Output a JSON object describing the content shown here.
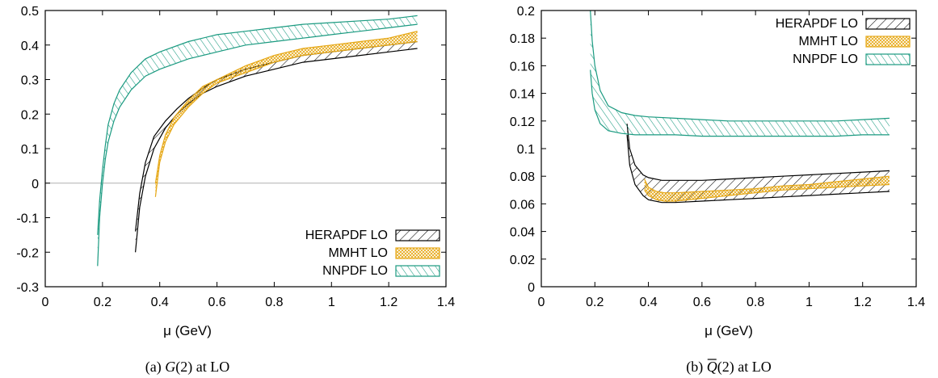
{
  "chart_data": [
    {
      "type": "area",
      "caption_prefix": "(a) ",
      "caption_symbol": "G",
      "caption_suffix": "(2) at LO",
      "xlabel": "μ (GeV)",
      "ylabel": "",
      "xlim": [
        0,
        1.4
      ],
      "ylim": [
        -0.3,
        0.5
      ],
      "xticks": [
        0,
        0.2,
        0.4,
        0.6,
        0.8,
        1,
        1.2,
        1.4
      ],
      "xtick_labels": [
        "0",
        "0.2",
        "0.4",
        "0.6",
        "0.8",
        "1",
        "1.2",
        "1.4"
      ],
      "yticks": [
        -0.3,
        -0.2,
        -0.1,
        0,
        0.1,
        0.2,
        0.3,
        0.4,
        0.5
      ],
      "ytick_labels": [
        "-0.3",
        "-0.2",
        "-0.1",
        "0",
        "0.1",
        "0.2",
        "0.3",
        "0.4",
        "0.5"
      ],
      "zero_line": true,
      "legend_position": "bottom-right",
      "series": [
        {
          "name": "HERAPDF LO",
          "color": "#000000",
          "pattern": "diag-forward",
          "x": [
            0.315,
            0.33,
            0.35,
            0.38,
            0.42,
            0.46,
            0.5,
            0.55,
            0.6,
            0.7,
            0.8,
            0.9,
            1.0,
            1.1,
            1.2,
            1.3
          ],
          "lower": [
            -0.2,
            -0.07,
            0.02,
            0.1,
            0.16,
            0.2,
            0.23,
            0.26,
            0.28,
            0.31,
            0.33,
            0.35,
            0.36,
            0.37,
            0.38,
            0.39
          ],
          "upper": [
            -0.14,
            -0.03,
            0.06,
            0.135,
            0.18,
            0.215,
            0.245,
            0.275,
            0.3,
            0.33,
            0.35,
            0.37,
            0.38,
            0.39,
            0.4,
            0.41
          ]
        },
        {
          "name": "MMHT LO",
          "color": "#e6a817",
          "pattern": "crosshatch",
          "x": [
            0.385,
            0.4,
            0.42,
            0.45,
            0.5,
            0.55,
            0.6,
            0.7,
            0.8,
            0.9,
            1.0,
            1.1,
            1.2,
            1.3
          ],
          "lower": [
            -0.04,
            0.06,
            0.12,
            0.17,
            0.22,
            0.26,
            0.29,
            0.32,
            0.35,
            0.37,
            0.38,
            0.39,
            0.4,
            0.41
          ],
          "upper": [
            0.0,
            0.08,
            0.14,
            0.19,
            0.24,
            0.28,
            0.3,
            0.34,
            0.37,
            0.39,
            0.4,
            0.41,
            0.42,
            0.44
          ]
        },
        {
          "name": "NNPDF LO",
          "color": "#1a9a80",
          "pattern": "diag-backward",
          "x": [
            0.183,
            0.19,
            0.2,
            0.21,
            0.22,
            0.24,
            0.26,
            0.3,
            0.35,
            0.4,
            0.5,
            0.6,
            0.7,
            0.8,
            0.9,
            1.0,
            1.1,
            1.2,
            1.3
          ],
          "lower": [
            -0.24,
            -0.1,
            0.0,
            0.07,
            0.12,
            0.18,
            0.22,
            0.27,
            0.31,
            0.33,
            0.36,
            0.38,
            0.4,
            0.41,
            0.42,
            0.43,
            0.44,
            0.45,
            0.46
          ],
          "upper": [
            -0.15,
            -0.05,
            0.04,
            0.11,
            0.17,
            0.23,
            0.27,
            0.32,
            0.36,
            0.38,
            0.41,
            0.43,
            0.44,
            0.45,
            0.46,
            0.465,
            0.47,
            0.475,
            0.485
          ]
        }
      ]
    },
    {
      "type": "area",
      "caption_prefix": "(b) ",
      "caption_symbol": "Q",
      "caption_suffix": "(2) at LO",
      "xlabel": "μ (GeV)",
      "ylabel": "",
      "xlim": [
        0,
        1.4
      ],
      "ylim": [
        0,
        0.2
      ],
      "xticks": [
        0,
        0.2,
        0.4,
        0.6,
        0.8,
        1,
        1.2,
        1.4
      ],
      "xtick_labels": [
        "0",
        "0.2",
        "0.4",
        "0.6",
        "0.8",
        "1",
        "1.2",
        "1.4"
      ],
      "yticks": [
        0,
        0.02,
        0.04,
        0.06,
        0.08,
        0.1,
        0.12,
        0.14,
        0.16,
        0.18,
        0.2
      ],
      "ytick_labels": [
        "0",
        "0.02",
        "0.04",
        "0.06",
        "0.08",
        "0.1",
        "0.12",
        "0.14",
        "0.16",
        "0.18",
        "0.2"
      ],
      "zero_line": false,
      "legend_position": "top-right",
      "series": [
        {
          "name": "HERAPDF LO",
          "color": "#000000",
          "pattern": "diag-forward",
          "x": [
            0.32,
            0.33,
            0.35,
            0.38,
            0.4,
            0.45,
            0.5,
            0.6,
            0.7,
            0.8,
            0.9,
            1.0,
            1.1,
            1.2,
            1.3
          ],
          "lower": [
            0.11,
            0.088,
            0.074,
            0.066,
            0.063,
            0.061,
            0.061,
            0.062,
            0.063,
            0.064,
            0.065,
            0.066,
            0.067,
            0.068,
            0.069
          ],
          "upper": [
            0.118,
            0.1,
            0.088,
            0.081,
            0.079,
            0.077,
            0.077,
            0.077,
            0.078,
            0.079,
            0.08,
            0.081,
            0.082,
            0.083,
            0.084
          ]
        },
        {
          "name": "MMHT LO",
          "color": "#e6a817",
          "pattern": "crosshatch",
          "x": [
            0.385,
            0.4,
            0.43,
            0.46,
            0.5,
            0.6,
            0.7,
            0.8,
            0.9,
            1.0,
            1.1,
            1.2,
            1.3
          ],
          "lower": [
            0.07,
            0.066,
            0.063,
            0.062,
            0.062,
            0.064,
            0.066,
            0.068,
            0.07,
            0.071,
            0.072,
            0.073,
            0.074
          ],
          "upper": [
            0.078,
            0.072,
            0.069,
            0.068,
            0.068,
            0.069,
            0.07,
            0.071,
            0.073,
            0.074,
            0.076,
            0.078,
            0.08
          ]
        },
        {
          "name": "NNPDF LO",
          "color": "#1a9a80",
          "pattern": "diag-backward",
          "x": [
            0.183,
            0.19,
            0.2,
            0.22,
            0.25,
            0.3,
            0.35,
            0.4,
            0.5,
            0.6,
            0.7,
            0.8,
            0.9,
            1.0,
            1.1,
            1.2,
            1.3
          ],
          "lower": [
            0.157,
            0.14,
            0.128,
            0.118,
            0.113,
            0.111,
            0.11,
            0.11,
            0.11,
            0.109,
            0.109,
            0.109,
            0.109,
            0.109,
            0.109,
            0.11,
            0.11
          ],
          "upper": [
            0.2,
            0.178,
            0.16,
            0.142,
            0.131,
            0.126,
            0.124,
            0.123,
            0.122,
            0.121,
            0.12,
            0.12,
            0.12,
            0.12,
            0.12,
            0.121,
            0.122
          ]
        }
      ]
    }
  ]
}
